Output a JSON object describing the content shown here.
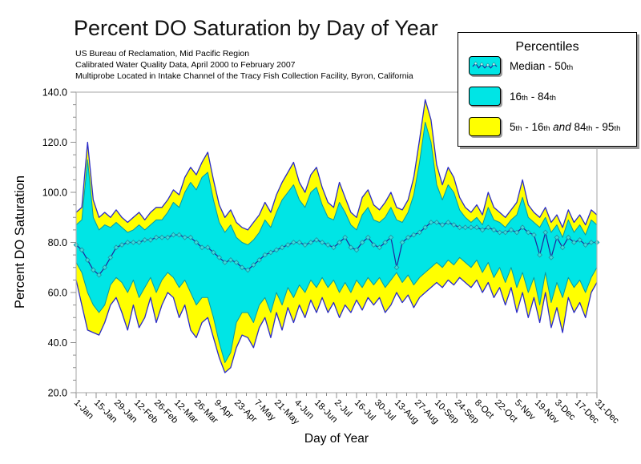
{
  "header": {
    "title": "Percent DO Saturation by Day of Year",
    "subtitle_lines": [
      "US Bureau of Reclamation, Mid Pacific Region",
      "Calibrated Water Quality Data, April 2000 to February 2007",
      "Multiprobe Located in Intake Channel of the Tracy Fish Collection Facility, Byron, California"
    ]
  },
  "legend": {
    "title": "Percentiles",
    "position": "top-right",
    "items": [
      {
        "text": "Median - 50th",
        "swatch_color": "#00e5e5",
        "swatch_kind": "median-line",
        "label_segments": [
          {
            "t": "Median - 50"
          },
          {
            "t": "th",
            "style": "sub"
          }
        ]
      },
      {
        "text": "16th - 84th",
        "swatch_color": "#00e5e5",
        "swatch_kind": "solid",
        "label_segments": [
          {
            "t": "16"
          },
          {
            "t": "th",
            "style": "sub"
          },
          {
            "t": " - 84"
          },
          {
            "t": "th",
            "style": "sub"
          }
        ]
      },
      {
        "text": "5th - 16th and 84th - 95th",
        "swatch_color": "#ffff00",
        "swatch_kind": "solid",
        "label_segments": [
          {
            "t": "5"
          },
          {
            "t": "th",
            "style": "sub"
          },
          {
            "t": " - 16"
          },
          {
            "t": "th",
            "style": "sub"
          },
          {
            "t": " "
          },
          {
            "t": "and",
            "style": "italic"
          },
          {
            "t": " 84"
          },
          {
            "t": "th",
            "style": "sub"
          },
          {
            "t": " - 95"
          },
          {
            "t": "th",
            "style": "sub"
          }
        ]
      }
    ]
  },
  "chart_data": {
    "type": "area",
    "title": "Percent DO Saturation by Day of Year",
    "xlabel": "Day of Year",
    "ylabel": "Percent DO Saturation",
    "ylim": [
      20,
      140
    ],
    "y_ticks": [
      20,
      40,
      60,
      80,
      100,
      120,
      140
    ],
    "y_minor_tick_interval": 5,
    "x_minor_tick_interval_days": 7,
    "grid": false,
    "legend_position": "top-right",
    "x_tick_labels": [
      "1-Jan",
      "15-Jan",
      "29-Jan",
      "12-Feb",
      "26-Feb",
      "12-Mar",
      "26-Mar",
      "9-Apr",
      "23-Apr",
      "7-May",
      "21-May",
      "4-Jun",
      "18-Jun",
      "2-Jul",
      "16-Jul",
      "30-Jul",
      "13-Aug",
      "27-Aug",
      "10-Sep",
      "24-Sep",
      "8-Oct",
      "22-Oct",
      "5-Nov",
      "19-Nov",
      "3-Dec",
      "17-Dec",
      "31-Dec"
    ],
    "x_tick_days": [
      1,
      15,
      29,
      43,
      57,
      71,
      85,
      99,
      113,
      127,
      141,
      155,
      169,
      183,
      197,
      211,
      225,
      239,
      253,
      267,
      281,
      295,
      309,
      323,
      337,
      351,
      365
    ],
    "days": [
      1,
      5,
      9,
      13,
      17,
      21,
      25,
      29,
      33,
      37,
      41,
      45,
      49,
      53,
      57,
      61,
      65,
      69,
      73,
      77,
      81,
      85,
      89,
      93,
      97,
      101,
      105,
      109,
      113,
      117,
      121,
      125,
      129,
      133,
      137,
      141,
      145,
      149,
      153,
      157,
      161,
      165,
      169,
      173,
      177,
      181,
      185,
      189,
      193,
      197,
      201,
      205,
      209,
      213,
      217,
      221,
      225,
      229,
      233,
      237,
      241,
      245,
      249,
      253,
      257,
      261,
      265,
      269,
      273,
      277,
      281,
      285,
      289,
      293,
      297,
      301,
      305,
      309,
      313,
      317,
      321,
      325,
      329,
      333,
      337,
      341,
      345,
      349,
      353,
      357,
      361,
      365
    ],
    "series": [
      {
        "key": "p5",
        "name": "5th percentile",
        "values": [
          65,
          55,
          45,
          44,
          43,
          48,
          55,
          58,
          52,
          45,
          55,
          46,
          50,
          58,
          48,
          55,
          60,
          58,
          50,
          55,
          45,
          42,
          48,
          50,
          42,
          34,
          28,
          30,
          38,
          43,
          42,
          38,
          46,
          50,
          42,
          52,
          45,
          54,
          48,
          55,
          50,
          57,
          52,
          58,
          52,
          56,
          50,
          55,
          52,
          57,
          53,
          58,
          55,
          58,
          52,
          55,
          60,
          56,
          59,
          54,
          58,
          60,
          62,
          64,
          62,
          65,
          63,
          66,
          64,
          62,
          65,
          60,
          64,
          58,
          62,
          55,
          62,
          52,
          60,
          50,
          58,
          48,
          60,
          46,
          54,
          44,
          58,
          52,
          56,
          50,
          60,
          64
        ]
      },
      {
        "key": "p16",
        "name": "16th percentile",
        "values": [
          72,
          68,
          60,
          55,
          52,
          55,
          63,
          66,
          64,
          60,
          65,
          58,
          62,
          66,
          60,
          65,
          68,
          66,
          62,
          65,
          60,
          55,
          58,
          58,
          50,
          40,
          32,
          36,
          48,
          52,
          52,
          48,
          55,
          58,
          52,
          60,
          55,
          62,
          58,
          63,
          60,
          65,
          62,
          66,
          62,
          65,
          60,
          64,
          60,
          65,
          62,
          66,
          63,
          66,
          62,
          65,
          68,
          64,
          67,
          63,
          66,
          68,
          70,
          72,
          70,
          73,
          71,
          74,
          72,
          70,
          73,
          68,
          72,
          66,
          70,
          64,
          70,
          62,
          68,
          60,
          66,
          55,
          68,
          56,
          64,
          58,
          66,
          62,
          65,
          60,
          66,
          70
        ]
      },
      {
        "key": "median",
        "name": "Median - 50th percentile",
        "values": [
          79,
          77,
          73,
          69,
          67,
          70,
          74,
          78,
          79,
          80,
          80,
          80,
          81,
          81,
          82,
          82,
          82,
          83,
          83,
          82,
          82,
          80,
          78,
          78,
          76,
          74,
          72,
          73,
          72,
          70,
          69,
          71,
          73,
          75,
          76,
          77,
          78,
          79,
          80,
          80,
          79,
          80,
          81,
          80,
          79,
          78,
          80,
          82,
          78,
          77,
          80,
          82,
          79,
          78,
          80,
          82,
          70,
          80,
          82,
          83,
          84,
          86,
          88,
          88,
          87,
          88,
          87,
          86,
          86,
          86,
          86,
          85,
          86,
          85,
          84,
          84,
          85,
          84,
          86,
          84,
          83,
          75,
          84,
          74,
          82,
          78,
          82,
          80,
          81,
          79,
          80,
          80
        ]
      },
      {
        "key": "p84",
        "name": "84th percentile",
        "values": [
          87,
          89,
          113,
          90,
          85,
          87,
          86,
          88,
          86,
          84,
          85,
          87,
          85,
          87,
          89,
          89,
          92,
          96,
          94,
          100,
          104,
          101,
          106,
          108,
          97,
          88,
          84,
          87,
          82,
          80,
          79,
          81,
          84,
          89,
          86,
          92,
          97,
          100,
          103,
          97,
          94,
          100,
          102,
          95,
          90,
          89,
          96,
          92,
          87,
          85,
          91,
          94,
          89,
          88,
          90,
          94,
          89,
          88,
          92,
          99,
          112,
          128,
          120,
          103,
          97,
          103,
          100,
          93,
          90,
          88,
          90,
          87,
          94,
          89,
          88,
          86,
          89,
          91,
          98,
          90,
          88,
          86,
          90,
          84,
          87,
          82,
          89,
          84,
          87,
          83,
          89,
          87
        ]
      },
      {
        "key": "p95",
        "name": "95th percentile",
        "values": [
          92,
          94,
          120,
          97,
          90,
          92,
          90,
          93,
          90,
          88,
          90,
          92,
          89,
          92,
          94,
          94,
          97,
          101,
          99,
          106,
          110,
          107,
          112,
          116,
          105,
          95,
          90,
          93,
          88,
          86,
          85,
          88,
          91,
          96,
          92,
          99,
          104,
          108,
          112,
          104,
          100,
          107,
          110,
          102,
          96,
          94,
          104,
          98,
          92,
          90,
          98,
          101,
          95,
          93,
          96,
          100,
          94,
          93,
          97,
          106,
          121,
          137,
          129,
          111,
          103,
          110,
          106,
          98,
          94,
          92,
          95,
          91,
          100,
          94,
          92,
          90,
          93,
          96,
          105,
          95,
          92,
          90,
          94,
          88,
          91,
          86,
          93,
          88,
          91,
          87,
          93,
          91
        ]
      }
    ],
    "colors": {
      "band_outer": "#ffff00",
      "band_inner": "#00e5e5",
      "outer_line": "#2b2bc8",
      "inner_edge": "#0899a0",
      "median_line": "#22229b",
      "marker_fill": "#3fd9dd",
      "marker_edge": "#1b9aa5",
      "frame": "#b4b4b4",
      "tick": "#8f8f8f",
      "text": "#000000"
    }
  }
}
